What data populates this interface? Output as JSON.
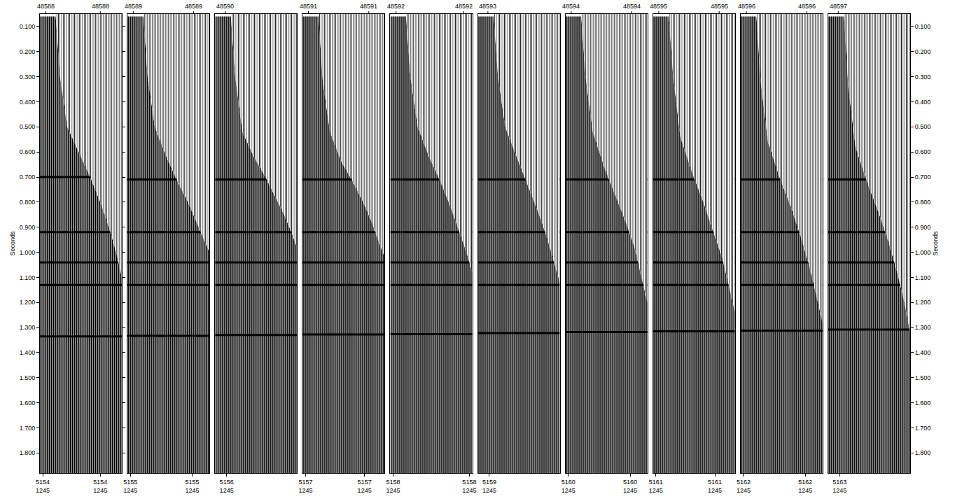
{
  "chart_data": {
    "type": "seismic_gather",
    "ylabel": "Seconds",
    "ylim": [
      1.88,
      0.05
    ],
    "yticks": [
      {
        "value": 0.1,
        "label": "0.100"
      },
      {
        "value": 0.2,
        "label": "0.200"
      },
      {
        "value": 0.3,
        "label": "0.300"
      },
      {
        "value": 0.4,
        "label": "0.400"
      },
      {
        "value": 0.5,
        "label": "0.500"
      },
      {
        "value": 0.6,
        "label": "0.600"
      },
      {
        "value": 0.7,
        "label": "0.700"
      },
      {
        "value": 0.8,
        "label": "0.800"
      },
      {
        "value": 0.9,
        "label": "0.900"
      },
      {
        "value": 1.0,
        "label": "1.000"
      },
      {
        "value": 1.1,
        "label": "1.100"
      },
      {
        "value": 1.2,
        "label": "1.200"
      },
      {
        "value": 1.3,
        "label": "1.300"
      },
      {
        "value": 1.4,
        "label": "1.400"
      },
      {
        "value": 1.5,
        "label": "1.500"
      },
      {
        "value": 1.6,
        "label": "1.600"
      },
      {
        "value": 1.7,
        "label": "1.700"
      },
      {
        "value": 1.8,
        "label": "1.800"
      }
    ],
    "xlim": [
      1,
      58
    ],
    "panels": [
      {
        "top_labels": [
          {
            "value": 5,
            "label": "48588"
          },
          {
            "value": 43,
            "label": "48588"
          }
        ],
        "bottom_labels": [
          {
            "value": 3,
            "label": "5154"
          },
          {
            "value": 43,
            "label": "5154"
          }
        ],
        "sub_labels": [
          "1245",
          "1245"
        ],
        "first_break": {
          "x": [
            12,
            15,
            20,
            28,
            36,
            43,
            49,
            54,
            58
          ],
          "values": [
            0.06,
            0.3,
            0.5,
            0.6,
            0.7,
            0.8,
            0.9,
            1.0,
            1.1
          ]
        },
        "events": [
          0.7,
          0.92,
          1.04,
          1.13,
          1.335
        ]
      },
      {
        "top_labels": [
          {
            "value": 5,
            "label": "48589"
          },
          {
            "value": 47,
            "label": "48589"
          }
        ],
        "bottom_labels": [
          {
            "value": 3,
            "label": "5155"
          },
          {
            "value": 46,
            "label": "5155"
          }
        ],
        "sub_labels": [
          "1245",
          "1245"
        ],
        "first_break": {
          "x": [
            12,
            15,
            20,
            28,
            36,
            43,
            49,
            54,
            58
          ],
          "values": [
            0.06,
            0.3,
            0.5,
            0.62,
            0.72,
            0.8,
            0.88,
            0.95,
            1.0
          ]
        },
        "events": [
          0.71,
          0.92,
          1.04,
          1.13,
          1.333
        ]
      },
      {
        "top_labels": [
          {
            "value": 8,
            "label": "48590"
          }
        ],
        "bottom_labels": [
          {
            "value": 9,
            "label": "5156"
          }
        ],
        "sub_labels": [
          "1245"
        ],
        "first_break": {
          "x": [
            12,
            15,
            20,
            28,
            36,
            43,
            49,
            54,
            58
          ],
          "values": [
            0.06,
            0.3,
            0.52,
            0.62,
            0.7,
            0.78,
            0.85,
            0.92,
            0.98
          ]
        },
        "events": [
          0.71,
          0.92,
          1.04,
          1.13,
          1.33
        ]
      },
      {
        "top_labels": [
          {
            "value": 5,
            "label": "48591"
          },
          {
            "value": 47,
            "label": "48591"
          }
        ],
        "bottom_labels": [
          {
            "value": 3,
            "label": "5157"
          },
          {
            "value": 44,
            "label": "5157"
          }
        ],
        "sub_labels": [
          "1245",
          "1245"
        ],
        "first_break": {
          "x": [
            12,
            15,
            20,
            28,
            36,
            43,
            49,
            54,
            58
          ],
          "values": [
            0.06,
            0.32,
            0.52,
            0.64,
            0.72,
            0.8,
            0.88,
            0.96,
            1.02
          ]
        },
        "events": [
          0.71,
          0.92,
          1.04,
          1.13,
          1.328
        ]
      },
      {
        "top_labels": [
          {
            "value": 5,
            "label": "48592"
          },
          {
            "value": 52,
            "label": "48592"
          }
        ],
        "bottom_labels": [
          {
            "value": 3,
            "label": "5158"
          },
          {
            "value": 56,
            "label": "5158"
          }
        ],
        "sub_labels": [
          "1245",
          "1245"
        ],
        "first_break": {
          "x": [
            12,
            15,
            20,
            28,
            36,
            43,
            49,
            54,
            58
          ],
          "values": [
            0.06,
            0.3,
            0.5,
            0.62,
            0.72,
            0.82,
            0.92,
            1.0,
            1.08
          ]
        },
        "events": [
          0.71,
          0.92,
          1.04,
          1.13,
          1.326
        ]
      },
      {
        "top_labels": [
          {
            "value": 8,
            "label": "48593"
          }
        ],
        "bottom_labels": [
          {
            "value": 9,
            "label": "5159"
          }
        ],
        "sub_labels": [
          "1245"
        ],
        "first_break": {
          "x": [
            12,
            15,
            20,
            28,
            36,
            43,
            49,
            54,
            58
          ],
          "values": [
            0.06,
            0.3,
            0.5,
            0.62,
            0.74,
            0.84,
            0.94,
            1.04,
            1.12
          ]
        },
        "events": [
          0.71,
          0.92,
          1.04,
          1.13,
          1.322
        ]
      },
      {
        "top_labels": [
          {
            "value": 5,
            "label": "48594"
          },
          {
            "value": 47,
            "label": "48594"
          }
        ],
        "bottom_labels": [
          {
            "value": 3,
            "label": "5160"
          },
          {
            "value": 46,
            "label": "5160"
          }
        ],
        "sub_labels": [
          "1245",
          "1245"
        ],
        "first_break": {
          "x": [
            12,
            15,
            20,
            28,
            36,
            43,
            49,
            54,
            58
          ],
          "values": [
            0.06,
            0.3,
            0.52,
            0.66,
            0.78,
            0.88,
            0.98,
            1.1,
            1.2
          ]
        },
        "events": [
          0.71,
          0.92,
          1.04,
          1.13,
          1.318
        ]
      },
      {
        "top_labels": [
          {
            "value": 5,
            "label": "48595"
          },
          {
            "value": 47,
            "label": "48595"
          }
        ],
        "bottom_labels": [
          {
            "value": 3,
            "label": "5161"
          },
          {
            "value": 44,
            "label": "5161"
          }
        ],
        "sub_labels": [
          "1245",
          "1245"
        ],
        "first_break": {
          "x": [
            12,
            15,
            20,
            28,
            36,
            43,
            49,
            54,
            58
          ],
          "values": [
            0.06,
            0.3,
            0.54,
            0.68,
            0.8,
            0.92,
            1.02,
            1.14,
            1.24
          ]
        },
        "events": [
          0.71,
          0.92,
          1.04,
          1.13,
          1.315
        ]
      },
      {
        "top_labels": [
          {
            "value": 5,
            "label": "48596"
          },
          {
            "value": 47,
            "label": "48596"
          }
        ],
        "bottom_labels": [
          {
            "value": 3,
            "label": "5162"
          },
          {
            "value": 46,
            "label": "5162"
          }
        ],
        "sub_labels": [
          "1245",
          "1245"
        ],
        "first_break": {
          "x": [
            12,
            15,
            20,
            28,
            36,
            43,
            49,
            54,
            58
          ],
          "values": [
            0.06,
            0.32,
            0.56,
            0.7,
            0.82,
            0.94,
            1.06,
            1.18,
            1.28
          ]
        },
        "events": [
          0.71,
          0.92,
          1.04,
          1.13,
          1.312
        ]
      },
      {
        "top_labels": [
          {
            "value": 8,
            "label": "48597"
          }
        ],
        "bottom_labels": [
          {
            "value": 9,
            "label": "5163"
          }
        ],
        "sub_labels": [
          "1245"
        ],
        "first_break": {
          "x": [
            12,
            15,
            20,
            28,
            36,
            43,
            49,
            54,
            58
          ],
          "values": [
            0.06,
            0.34,
            0.58,
            0.72,
            0.84,
            0.96,
            1.08,
            1.2,
            1.32
          ]
        },
        "events": [
          0.71,
          0.92,
          1.04,
          1.13,
          1.308
        ]
      }
    ]
  }
}
